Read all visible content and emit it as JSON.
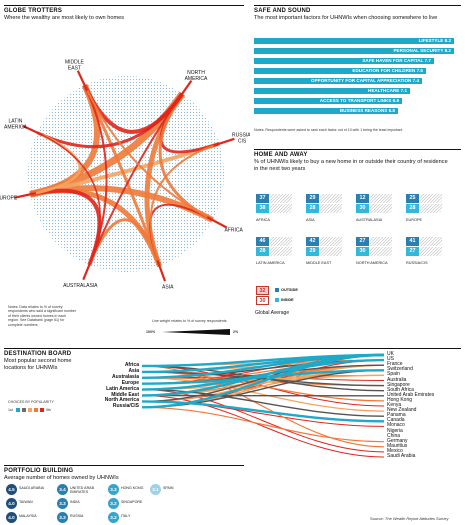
{
  "globe": {
    "title": "GLOBE TROTTERS",
    "subtitle": "Where the wealthy are most likely to own homes",
    "regions": [
      {
        "name": "MIDDLE EAST",
        "angle": -115
      },
      {
        "name": "NORTH AMERICA",
        "angle": -55
      },
      {
        "name": "RUSSIA/ CIS",
        "angle": -18
      },
      {
        "name": "AFRICA",
        "angle": 28
      },
      {
        "name": "ASIA",
        "angle": 70
      },
      {
        "name": "AUSTRALASIA",
        "angle": 112
      },
      {
        "name": "EUROPE",
        "angle": 168
      },
      {
        "name": "LATIN AMERICA",
        "angle": -155
      }
    ],
    "notes": "Notes: Data relates to % of survey respondents who said a significant number of their clients owned homes in each region. See Databank (page 61) for complete numbers",
    "legend_title": "Line weight relates to % of survey respondents",
    "legend_max": "100%",
    "legend_min": "2%"
  },
  "safe": {
    "title": "SAFE AND SOUND",
    "subtitle": "The most important factors for UHNWIs when choosing somewhere to live",
    "notes": "Notes: Respondents were asked to rank each factor out of 10 with 1 being the least important",
    "factors": [
      {
        "label": "LIFESTYLE 8.2",
        "value": 8.2
      },
      {
        "label": "PERSONAL SECURITY 8.2",
        "value": 8.2
      },
      {
        "label": "SAFE HAVEN FOR CAPITAL 7.7",
        "value": 7.7
      },
      {
        "label": "EDUCATION FOR CHILDREN 7.5",
        "value": 7.5
      },
      {
        "label": "OPPORTUNITY FOR CAPITAL APPRECIATION 7.4",
        "value": 7.4
      },
      {
        "label": "HEALTHCARE 7.1",
        "value": 7.1
      },
      {
        "label": "ACCESS TO TRANSPORT LINKS 6.9",
        "value": 6.9
      },
      {
        "label": "BUSINESS REASONS 6.8",
        "value": 6.8
      }
    ]
  },
  "home": {
    "title": "HOME AND AWAY",
    "subtitle": "% of UHNWIs likely to buy a new home in or outside their country of residence in the next two years",
    "regions": [
      {
        "name": "AFRICA",
        "outside": 37,
        "inside": 38
      },
      {
        "name": "ASIA",
        "outside": 29,
        "inside": 28
      },
      {
        "name": "AUSTRALASIA",
        "outside": 12,
        "inside": 30
      },
      {
        "name": "EUROPE",
        "outside": 25,
        "inside": 28
      },
      {
        "name": "LATIN AMERICA",
        "outside": 46,
        "inside": 28
      },
      {
        "name": "MIDDLE EAST",
        "outside": 42,
        "inside": 29
      },
      {
        "name": "NORTH AMERICA",
        "outside": 27,
        "inside": 30
      },
      {
        "name": "RUSSIA/CIS",
        "outside": 41,
        "inside": 27
      }
    ],
    "global": {
      "outside": 32,
      "inside": 30
    },
    "outside_label": "OUTSIDE",
    "inside_label": "INSIDE",
    "global_label": "Global Average"
  },
  "dest": {
    "title": "DESTINATION BOARD",
    "subtitle": "Most popular second home locations for UHNWIs",
    "choices_label": "CHOICES BY POPULARITY",
    "rank_first": "1st",
    "rank_fifth": "5th",
    "origins": [
      "Africa",
      "Asia",
      "Australasia",
      "Europe",
      "Latin America",
      "Middle East",
      "North America",
      "Russia/CIS"
    ],
    "destinations": [
      "UK",
      "US",
      "France",
      "Switzerland",
      "Spain",
      "Australia",
      "Singapore",
      "South Africa",
      "United Arab Emirates",
      "Hong Kong",
      "Kenya",
      "New Zealand",
      "Panama",
      "Canada",
      "Monaco",
      "Nigeria",
      "China",
      "Germany",
      "Mauritius",
      "Mexico",
      "Saudi Arabia"
    ],
    "links": [
      [
        0,
        0,
        1
      ],
      [
        0,
        7,
        2
      ],
      [
        0,
        1,
        3
      ],
      [
        0,
        18,
        4
      ],
      [
        0,
        10,
        5
      ],
      [
        1,
        0,
        1
      ],
      [
        1,
        6,
        2
      ],
      [
        1,
        1,
        3
      ],
      [
        1,
        9,
        4
      ],
      [
        1,
        5,
        5
      ],
      [
        2,
        0,
        1
      ],
      [
        2,
        1,
        2
      ],
      [
        2,
        11,
        3
      ],
      [
        2,
        6,
        4
      ],
      [
        2,
        4,
        5
      ],
      [
        3,
        3,
        1
      ],
      [
        3,
        2,
        2
      ],
      [
        3,
        4,
        3
      ],
      [
        3,
        1,
        4
      ],
      [
        3,
        0,
        5
      ],
      [
        4,
        1,
        1
      ],
      [
        4,
        12,
        2
      ],
      [
        4,
        4,
        3
      ],
      [
        4,
        2,
        4
      ],
      [
        4,
        19,
        5
      ],
      [
        5,
        0,
        1
      ],
      [
        5,
        8,
        2
      ],
      [
        5,
        3,
        3
      ],
      [
        5,
        2,
        4
      ],
      [
        5,
        20,
        5
      ],
      [
        6,
        13,
        1
      ],
      [
        6,
        0,
        2
      ],
      [
        6,
        2,
        3
      ],
      [
        6,
        3,
        4
      ],
      [
        6,
        14,
        5
      ],
      [
        7,
        0,
        1
      ],
      [
        7,
        3,
        2
      ],
      [
        7,
        2,
        3
      ],
      [
        7,
        17,
        4
      ],
      [
        7,
        1,
        5
      ]
    ]
  },
  "portfolio": {
    "title": "PORTFOLIO BUILDING",
    "subtitle": "Average number of homes owned by UHNWIs",
    "items": [
      {
        "value": "4.5",
        "name": "SAUDI ARABIA",
        "color": "#1e4f79"
      },
      {
        "value": "3.4",
        "name": "UNITED ARAB EMIRATES",
        "color": "#2a7fb0"
      },
      {
        "value": "3.3",
        "name": "HONG KONG",
        "color": "#33a6cf"
      },
      {
        "value": "3.1",
        "name": "SPAIN",
        "color": "#9dd3e6"
      },
      {
        "value": "4.0",
        "name": "TAIWAN",
        "color": "#1e4f79"
      },
      {
        "value": "3.3",
        "name": "INDIA",
        "color": "#2a7fb0"
      },
      {
        "value": "3.2",
        "name": "SINGAPORE",
        "color": "#33a6cf"
      },
      {
        "value": "4.0",
        "name": "MALAYSIA",
        "color": "#1e4f79"
      },
      {
        "value": "3.3",
        "name": "RUSSIA",
        "color": "#2a7fb0"
      },
      {
        "value": "3.2",
        "name": "ITALY",
        "color": "#33a6cf"
      }
    ]
  },
  "source_prefix": "Source: ",
  "source_text": "The Wealth Report Attitudes Survey",
  "colors": {
    "blue": "#1fa9c9",
    "dark_blue": "#2a7fb0",
    "red": "#e0261b",
    "orange": "#f07a3a"
  },
  "chart_data": [
    {
      "type": "chord",
      "title": "GLOBE TROTTERS",
      "subtitle": "Where the wealthy are most likely to own homes",
      "categories": [
        "MIDDLE EAST",
        "NORTH AMERICA",
        "RUSSIA/CIS",
        "AFRICA",
        "ASIA",
        "AUSTRALASIA",
        "EUROPE",
        "LATIN AMERICA"
      ]
    },
    {
      "type": "bar",
      "title": "SAFE AND SOUND",
      "categories": [
        "LIFESTYLE",
        "PERSONAL SECURITY",
        "SAFE HAVEN FOR CAPITAL",
        "EDUCATION FOR CHILDREN",
        "OPPORTUNITY FOR CAPITAL APPRECIATION",
        "HEALTHCARE",
        "ACCESS TO TRANSPORT LINKS",
        "BUSINESS REASONS"
      ],
      "values": [
        8.2,
        8.2,
        7.7,
        7.5,
        7.4,
        7.1,
        6.9,
        6.8
      ]
    },
    {
      "type": "bar",
      "title": "HOME AND AWAY",
      "categories": [
        "AFRICA",
        "ASIA",
        "AUSTRALASIA",
        "EUROPE",
        "LATIN AMERICA",
        "MIDDLE EAST",
        "NORTH AMERICA",
        "RUSSIA/CIS"
      ],
      "series": [
        {
          "name": "OUTSIDE",
          "values": [
            37,
            29,
            12,
            25,
            46,
            42,
            27,
            41
          ]
        },
        {
          "name": "INSIDE",
          "values": [
            38,
            28,
            30,
            28,
            28,
            29,
            30,
            27
          ]
        }
      ]
    },
    {
      "type": "table",
      "title": "PORTFOLIO BUILDING",
      "categories": [
        "SAUDI ARABIA",
        "UNITED ARAB EMIRATES",
        "HONG KONG",
        "SPAIN",
        "TAIWAN",
        "INDIA",
        "SINGAPORE",
        "MALAYSIA",
        "RUSSIA",
        "ITALY"
      ],
      "values": [
        4.5,
        3.4,
        3.3,
        3.1,
        4.0,
        3.3,
        3.2,
        4.0,
        3.3,
        3.2
      ]
    }
  ]
}
